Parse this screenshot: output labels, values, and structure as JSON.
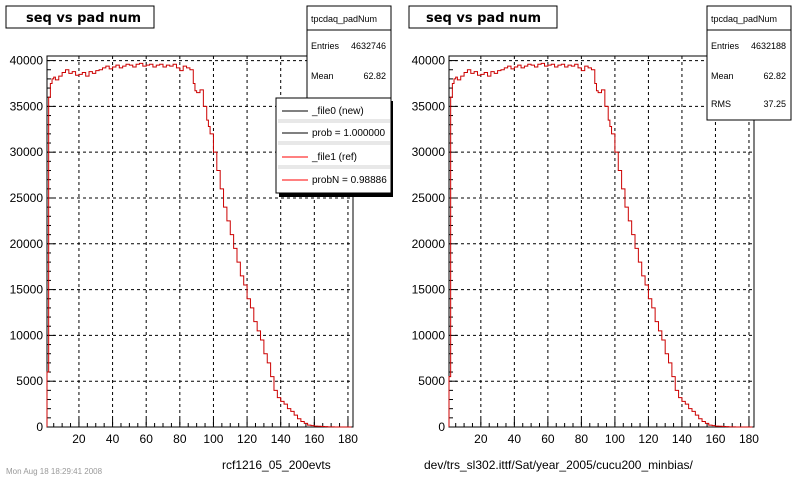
{
  "panels": [
    {
      "title": "seq vs pad num",
      "footer": "rcf1216_05_200evts",
      "stats": {
        "name": "tpcdaq_padNum",
        "rows": [
          {
            "label": "Entries",
            "value": "4632746"
          },
          {
            "label": "Mean",
            "value": "62.82"
          }
        ]
      },
      "legend": [
        {
          "label": "_file0 (new)",
          "color": "#000000"
        },
        {
          "label": "prob = 1.000000",
          "color": "#000000"
        },
        {
          "label": "_file1 (ref)",
          "color": "#ff0000"
        },
        {
          "label": "probN = 0.98886",
          "color": "#ff0000"
        }
      ]
    },
    {
      "title": "seq vs pad num",
      "footer": "dev/trs_sl302.ittf/Sat/year_2005/cucu200_minbias/",
      "stats": {
        "name": "tpcdaq_padNum",
        "rows": [
          {
            "label": "Entries",
            "value": "4632188"
          },
          {
            "label": "Mean",
            "value": "62.82"
          },
          {
            "label": "RMS",
            "value": "37.25"
          }
        ]
      }
    }
  ],
  "bottom_left_text": "Mon Aug 18 18:29:41 2008",
  "chart_data": [
    {
      "type": "line",
      "title": "seq vs pad num",
      "xlabel": "rcf1216_05_200evts",
      "ylabel": "",
      "xlim": [
        1,
        183
      ],
      "ylim": [
        0,
        40500
      ],
      "xticks": [
        20,
        40,
        60,
        80,
        100,
        120,
        140,
        160,
        180
      ],
      "yticks": [
        0,
        5000,
        10000,
        15000,
        20000,
        25000,
        30000,
        35000,
        40000
      ],
      "grid": true,
      "series_color": "#cc0000",
      "x": [
        1,
        2,
        3,
        4,
        5,
        6,
        8,
        10,
        12,
        14,
        16,
        18,
        20,
        22,
        24,
        26,
        28,
        30,
        32,
        34,
        36,
        38,
        40,
        42,
        44,
        46,
        48,
        50,
        52,
        54,
        56,
        58,
        60,
        62,
        64,
        66,
        68,
        70,
        72,
        74,
        76,
        78,
        80,
        82,
        84,
        86,
        88,
        89,
        90,
        92,
        94,
        96,
        97,
        98,
        100,
        102,
        104,
        106,
        108,
        110,
        112,
        114,
        116,
        118,
        120,
        122,
        124,
        126,
        128,
        130,
        132,
        134,
        136,
        138,
        140,
        142,
        144,
        146,
        148,
        150,
        152,
        154,
        156,
        158,
        160,
        162,
        164,
        166,
        168,
        170,
        172,
        174,
        176,
        178,
        180
      ],
      "values": [
        6000,
        36000,
        37500,
        38000,
        38200,
        37900,
        38300,
        38700,
        39000,
        38600,
        38800,
        38400,
        38500,
        38700,
        38300,
        38800,
        38600,
        38900,
        39000,
        39200,
        39400,
        39100,
        39300,
        39500,
        39200,
        39400,
        39600,
        39500,
        39300,
        39600,
        39700,
        39400,
        39500,
        39600,
        39300,
        39500,
        39600,
        39300,
        39500,
        39400,
        39600,
        39200,
        38900,
        39400,
        39200,
        39000,
        37500,
        36700,
        36500,
        36800,
        35000,
        33500,
        32800,
        32000,
        30000,
        28000,
        26000,
        24000,
        22500,
        21000,
        19500,
        18000,
        16500,
        15500,
        14000,
        13000,
        11500,
        10500,
        9500,
        8000,
        7000,
        5500,
        4000,
        3200,
        2800,
        2500,
        2000,
        1700,
        1300,
        900,
        600,
        400,
        200,
        150,
        100,
        80,
        60,
        40,
        20,
        10,
        5,
        0,
        0,
        0,
        0
      ]
    },
    {
      "type": "line",
      "title": "seq vs pad num",
      "xlabel": "dev/trs_sl302.ittf/Sat/year_2005/cucu200_minbias/",
      "ylabel": "",
      "xlim": [
        1,
        183
      ],
      "ylim": [
        0,
        40500
      ],
      "xticks": [
        20,
        40,
        60,
        80,
        100,
        120,
        140,
        160,
        180
      ],
      "yticks": [
        0,
        5000,
        10000,
        15000,
        20000,
        25000,
        30000,
        35000,
        40000
      ],
      "grid": true,
      "series_color": "#cc0000",
      "x": [
        1,
        2,
        3,
        4,
        5,
        6,
        8,
        10,
        12,
        14,
        16,
        18,
        20,
        22,
        24,
        26,
        28,
        30,
        32,
        34,
        36,
        38,
        40,
        42,
        44,
        46,
        48,
        50,
        52,
        54,
        56,
        58,
        60,
        62,
        64,
        66,
        68,
        70,
        72,
        74,
        76,
        78,
        80,
        82,
        84,
        86,
        88,
        89,
        90,
        92,
        94,
        96,
        97,
        98,
        100,
        102,
        104,
        106,
        108,
        110,
        112,
        114,
        116,
        118,
        120,
        122,
        124,
        126,
        128,
        130,
        132,
        134,
        136,
        138,
        140,
        142,
        144,
        146,
        148,
        150,
        152,
        154,
        156,
        158,
        160,
        162,
        164,
        166,
        168,
        170,
        172,
        174,
        176,
        178,
        180
      ],
      "values": [
        5500,
        36000,
        37500,
        38000,
        38200,
        37900,
        38300,
        38700,
        39000,
        38600,
        38800,
        38400,
        38500,
        38700,
        38300,
        38800,
        38600,
        38900,
        39000,
        39200,
        39400,
        39100,
        39300,
        39500,
        39200,
        39400,
        39600,
        39500,
        39300,
        39600,
        39700,
        39400,
        39500,
        39600,
        39300,
        39500,
        39600,
        39300,
        39500,
        39400,
        39600,
        39200,
        38900,
        39400,
        39200,
        39000,
        37500,
        36700,
        36500,
        36800,
        35000,
        33500,
        32800,
        32000,
        30000,
        28000,
        26000,
        24000,
        22500,
        21000,
        19500,
        18000,
        16500,
        15500,
        14000,
        13000,
        11500,
        10500,
        9500,
        8000,
        7000,
        5500,
        4000,
        3200,
        2800,
        2500,
        2000,
        1700,
        1300,
        900,
        600,
        400,
        200,
        150,
        100,
        80,
        60,
        40,
        20,
        10,
        5,
        0,
        0,
        0,
        0
      ]
    }
  ]
}
